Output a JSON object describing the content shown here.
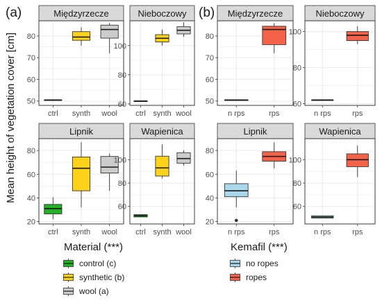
{
  "panel_tags": [
    "(a)",
    "(b)"
  ],
  "ylabel": "Mean height of vegetation cover [cm]",
  "colors": {
    "control": "#22b024",
    "synthetic": "#ffd21a",
    "wool": "#cccccc",
    "no_ropes": "#a9d8ea",
    "ropes": "#f4624a",
    "strip": "#d9d9d9",
    "grid": "#ebebeb"
  },
  "legends": [
    {
      "title": "Material (***)",
      "items": [
        {
          "label": "control (c)",
          "color_key": "control"
        },
        {
          "label": "synthetic (b)",
          "color_key": "synthetic"
        },
        {
          "label": "wool (a)",
          "color_key": "wool"
        }
      ]
    },
    {
      "title": "Kemafil (***)",
      "items": [
        {
          "label": "no ropes",
          "color_key": "no_ropes"
        },
        {
          "label": "ropes",
          "color_key": "ropes"
        }
      ]
    }
  ],
  "chart_data": [
    {
      "type": "boxplot",
      "group": "(a)",
      "title": "Międzyrzecze",
      "categories": [
        "ctrl",
        "synth",
        "wool"
      ],
      "ylim": [
        48,
        87
      ],
      "yticks": [
        50,
        60,
        70,
        80
      ],
      "series": [
        {
          "category": "ctrl",
          "color_key": "control",
          "min": 50.5,
          "q1": 50.5,
          "median": 50.5,
          "q3": 50.5,
          "max": 50.5,
          "outliers": []
        },
        {
          "category": "synth",
          "color_key": "synthetic",
          "min": 75.5,
          "q1": 78,
          "median": 79.5,
          "q3": 82,
          "max": 84,
          "outliers": []
        },
        {
          "category": "wool",
          "color_key": "wool",
          "min": 72,
          "q1": 79,
          "median": 83,
          "q3": 85,
          "max": 86,
          "outliers": []
        }
      ]
    },
    {
      "type": "boxplot",
      "group": "(a)",
      "title": "Nieboczowy",
      "categories": [
        "ctrl",
        "synth",
        "wool"
      ],
      "ylim": [
        59,
        117
      ],
      "yticks": [
        60,
        80,
        100
      ],
      "series": [
        {
          "category": "ctrl",
          "color_key": "control",
          "min": 62,
          "q1": 62,
          "median": 62,
          "q3": 62,
          "max": 62,
          "outliers": []
        },
        {
          "category": "synth",
          "color_key": "synthetic",
          "min": 100,
          "q1": 102.5,
          "median": 105,
          "q3": 107.5,
          "max": 111,
          "outliers": []
        },
        {
          "category": "wool",
          "color_key": "wool",
          "min": 106,
          "q1": 108,
          "median": 110.5,
          "q3": 113,
          "max": 116,
          "outliers": []
        }
      ]
    },
    {
      "type": "boxplot",
      "group": "(a)",
      "title": "Lipnik",
      "categories": [
        "ctrl",
        "synth",
        "wool"
      ],
      "ylim": [
        18,
        90
      ],
      "yticks": [
        20,
        40,
        60,
        80
      ],
      "series": [
        {
          "category": "ctrl",
          "color_key": "control",
          "min": 22,
          "q1": 26.5,
          "median": 31,
          "q3": 34.5,
          "max": 40.5,
          "outliers": []
        },
        {
          "category": "synth",
          "color_key": "synthetic",
          "min": 32,
          "q1": 46,
          "median": 65,
          "q3": 74.5,
          "max": 87,
          "outliers": []
        },
        {
          "category": "wool",
          "color_key": "wool",
          "min": 46,
          "q1": 61,
          "median": 66,
          "q3": 75,
          "max": 77.5,
          "outliers": []
        }
      ]
    },
    {
      "type": "boxplot",
      "group": "(a)",
      "title": "Wapienica",
      "categories": [
        "ctrl",
        "synth",
        "wool"
      ],
      "ylim": [
        45,
        118
      ],
      "yticks": [
        60,
        80,
        100
      ],
      "series": [
        {
          "category": "ctrl",
          "color_key": "control",
          "min": 51,
          "q1": 51,
          "median": 52,
          "q3": 53,
          "max": 53,
          "outliers": []
        },
        {
          "category": "synth",
          "color_key": "synthetic",
          "min": 84,
          "q1": 86,
          "median": 93,
          "q3": 103,
          "max": 113,
          "outliers": []
        },
        {
          "category": "wool",
          "color_key": "wool",
          "min": 95,
          "q1": 97,
          "median": 101,
          "q3": 106,
          "max": 108,
          "outliers": []
        }
      ]
    },
    {
      "type": "boxplot",
      "group": "(b)",
      "title": "Międzyrzecze",
      "categories": [
        "n rps",
        "rps"
      ],
      "ylim": [
        48,
        87
      ],
      "yticks": [
        50,
        60,
        70,
        80
      ],
      "series": [
        {
          "category": "n rps",
          "color_key": "no_ropes",
          "min": 50.5,
          "q1": 50.5,
          "median": 50.5,
          "q3": 50.5,
          "max": 50.5,
          "outliers": []
        },
        {
          "category": "rps",
          "color_key": "ropes",
          "min": 72,
          "q1": 76,
          "median": 83,
          "q3": 84.5,
          "max": 86,
          "outliers": []
        }
      ]
    },
    {
      "type": "boxplot",
      "group": "(b)",
      "title": "Nieboczowy",
      "categories": [
        "n rps",
        "rps"
      ],
      "ylim": [
        59,
        106
      ],
      "yticks": [
        60,
        80,
        100
      ],
      "series": [
        {
          "category": "n rps",
          "color_key": "no_ropes",
          "min": 62,
          "q1": 62,
          "median": 62,
          "q3": 62,
          "max": 62,
          "outliers": []
        },
        {
          "category": "rps",
          "color_key": "ropes",
          "min": 93,
          "q1": 95,
          "median": 98,
          "q3": 100,
          "max": 103,
          "outliers": []
        }
      ]
    },
    {
      "type": "boxplot",
      "group": "(b)",
      "title": "Lipnik",
      "categories": [
        "n rps",
        "rps"
      ],
      "ylim": [
        18,
        90
      ],
      "yticks": [
        20,
        40,
        60,
        80
      ],
      "series": [
        {
          "category": "n rps",
          "color_key": "no_ropes",
          "min": 32,
          "q1": 41,
          "median": 46,
          "q3": 52,
          "max": 63,
          "outliers": [
            21
          ]
        },
        {
          "category": "rps",
          "color_key": "ropes",
          "min": 65,
          "q1": 71,
          "median": 75,
          "q3": 79,
          "max": 87,
          "outliers": []
        }
      ]
    },
    {
      "type": "boxplot",
      "group": "(b)",
      "title": "Wapienica",
      "categories": [
        "n rps",
        "rps"
      ],
      "ylim": [
        45,
        118
      ],
      "yticks": [
        60,
        80,
        100
      ],
      "series": [
        {
          "category": "n rps",
          "color_key": "no_ropes",
          "min": 50,
          "q1": 50,
          "median": 51,
          "q3": 52,
          "max": 52,
          "outliers": []
        },
        {
          "category": "rps",
          "color_key": "ropes",
          "min": 85,
          "q1": 94,
          "median": 100,
          "q3": 105,
          "max": 112,
          "outliers": []
        }
      ]
    }
  ]
}
